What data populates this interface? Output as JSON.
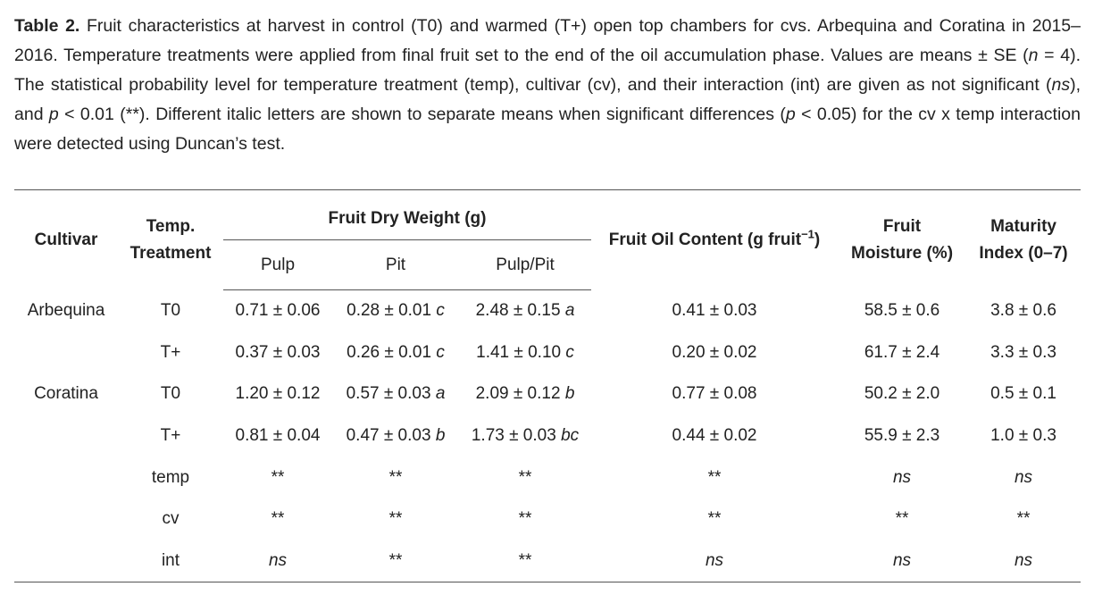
{
  "caption": {
    "label": "Table 2.",
    "segments": [
      {
        "text": "Fruit characteristics at harvest in control (T0) and warmed (T+) open top chambers for cvs. Arbequina and Coratina in 2015–2016. Temperature treatments were applied from final fruit set to the end of the oil accumulation phase. Values are means ± SE ("
      },
      {
        "text": "n",
        "italic": true
      },
      {
        "text": " = 4). The statistical probability level for temperature treatment (temp), cultivar (cv), and their interaction (int) are given as not significant ("
      },
      {
        "text": "ns",
        "italic": true
      },
      {
        "text": "), and "
      },
      {
        "text": "p",
        "italic": true
      },
      {
        "text": " < 0.01 (**). Different italic letters are shown to separate means when significant differences ("
      },
      {
        "text": "p",
        "italic": true
      },
      {
        "text": " < 0.05) for the cv x temp interaction were detected using Duncan’s test."
      }
    ]
  },
  "table": {
    "header": {
      "cultivar": "Cultivar",
      "treatment": [
        "Temp.",
        "Treatment"
      ],
      "dry_weight": {
        "title": "Fruit Dry Weight (g)",
        "columns": [
          "Pulp",
          "Pit",
          "Pulp/Pit"
        ]
      },
      "oil": {
        "text": "Fruit Oil Content (g fruit",
        "sup": "−1",
        "tail": ")"
      },
      "moisture": [
        "Fruit",
        "Moisture (%)"
      ],
      "maturity": [
        "Maturity",
        "Index (0–7)"
      ]
    },
    "rows": [
      {
        "cultivar": "Arbequina",
        "treatment": "T0",
        "cells": [
          {
            "text": "0.71 ± 0.06"
          },
          {
            "text": "0.28 ± 0.01",
            "letter": "c"
          },
          {
            "text": "2.48 ± 0.15",
            "letter": "a"
          },
          {
            "text": "0.41 ± 0.03"
          },
          {
            "text": "58.5 ± 0.6"
          },
          {
            "text": "3.8 ± 0.6"
          }
        ]
      },
      {
        "cultivar": null,
        "treatment": "T+",
        "cells": [
          {
            "text": "0.37 ± 0.03"
          },
          {
            "text": "0.26 ± 0.01",
            "letter": "c"
          },
          {
            "text": "1.41 ± 0.10",
            "letter": "c"
          },
          {
            "text": "0.20 ± 0.02"
          },
          {
            "text": "61.7 ± 2.4"
          },
          {
            "text": "3.3 ± 0.3"
          }
        ]
      },
      {
        "cultivar": "Coratina",
        "treatment": "T0",
        "cells": [
          {
            "text": "1.20 ± 0.12"
          },
          {
            "text": "0.57 ± 0.03",
            "letter": "a"
          },
          {
            "text": "2.09 ± 0.12",
            "letter": "b"
          },
          {
            "text": "0.77 ± 0.08"
          },
          {
            "text": "50.2 ± 2.0"
          },
          {
            "text": "0.5 ± 0.1"
          }
        ]
      },
      {
        "cultivar": null,
        "treatment": "T+",
        "cells": [
          {
            "text": "0.81 ± 0.04"
          },
          {
            "text": "0.47 ± 0.03",
            "letter": "b"
          },
          {
            "text": "1.73 ± 0.03",
            "letter": "bc"
          },
          {
            "text": "0.44 ± 0.02"
          },
          {
            "text": "55.9 ± 2.3"
          },
          {
            "text": "1.0 ± 0.3"
          }
        ]
      },
      {
        "cultivar": null,
        "treatment": "temp",
        "cells": [
          {
            "text": "**"
          },
          {
            "text": "**"
          },
          {
            "text": "**"
          },
          {
            "text": "**"
          },
          {
            "text": "ns",
            "italic": true
          },
          {
            "text": "ns",
            "italic": true
          }
        ]
      },
      {
        "cultivar": null,
        "treatment": "cv",
        "cells": [
          {
            "text": "**"
          },
          {
            "text": "**"
          },
          {
            "text": "**"
          },
          {
            "text": "**"
          },
          {
            "text": "**"
          },
          {
            "text": "**"
          }
        ]
      },
      {
        "cultivar": null,
        "treatment": "int",
        "cells": [
          {
            "text": "ns",
            "italic": true
          },
          {
            "text": "**"
          },
          {
            "text": "**"
          },
          {
            "text": "ns",
            "italic": true
          },
          {
            "text": "ns",
            "italic": true
          },
          {
            "text": "ns",
            "italic": true
          }
        ]
      }
    ]
  }
}
